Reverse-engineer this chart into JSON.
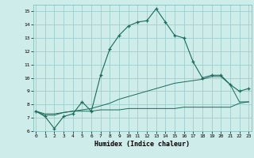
{
  "xlabel": "Humidex (Indice chaleur)",
  "bg_color": "#cdecea",
  "grid_color": "#9ecfcc",
  "line_color": "#1a6b5a",
  "x_values": [
    0,
    1,
    2,
    3,
    4,
    5,
    6,
    7,
    8,
    9,
    10,
    11,
    12,
    13,
    14,
    15,
    16,
    17,
    18,
    19,
    20,
    21,
    22,
    23
  ],
  "series1": [
    7.5,
    7.1,
    6.2,
    7.1,
    7.3,
    8.2,
    7.5,
    10.2,
    12.2,
    13.2,
    13.9,
    14.2,
    14.3,
    15.2,
    14.2,
    13.2,
    13.0,
    11.2,
    10.0,
    10.2,
    10.2,
    9.5,
    9.0,
    9.2
  ],
  "series2": [
    7.5,
    7.2,
    7.2,
    7.4,
    7.5,
    7.6,
    7.7,
    7.9,
    8.1,
    8.4,
    8.6,
    8.8,
    9.0,
    9.2,
    9.4,
    9.6,
    9.7,
    9.8,
    9.9,
    10.1,
    10.1,
    9.5,
    8.2,
    8.2
  ],
  "series3": [
    7.5,
    7.3,
    7.3,
    7.4,
    7.5,
    7.5,
    7.5,
    7.6,
    7.6,
    7.6,
    7.7,
    7.7,
    7.7,
    7.7,
    7.7,
    7.7,
    7.8,
    7.8,
    7.8,
    7.8,
    7.8,
    7.8,
    8.1,
    8.2
  ],
  "ylim": [
    6,
    15.5
  ],
  "yticks": [
    6,
    7,
    8,
    9,
    10,
    11,
    12,
    13,
    14,
    15
  ],
  "xlim": [
    -0.3,
    23.3
  ],
  "xticks": [
    0,
    1,
    2,
    3,
    4,
    5,
    6,
    7,
    8,
    9,
    10,
    11,
    12,
    13,
    14,
    15,
    16,
    17,
    18,
    19,
    20,
    21,
    22,
    23
  ]
}
